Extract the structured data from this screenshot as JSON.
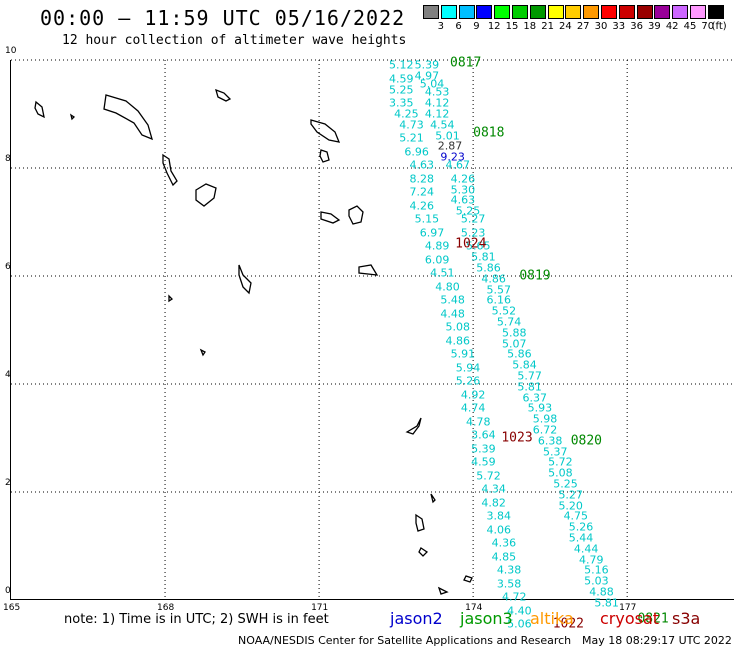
{
  "header": {
    "title": "00:00 – 11:59 UTC 05/16/2022",
    "subtitle": "12 hour collection of altimeter wave heights"
  },
  "colorbar": {
    "unit": "(ft)",
    "labels": [
      "3",
      "6",
      "9",
      "12",
      "15",
      "18",
      "21",
      "24",
      "27",
      "30",
      "33",
      "36",
      "39",
      "42",
      "45",
      "70"
    ],
    "colors": [
      "#808080",
      "#00ffff",
      "#00bfff",
      "#0000ff",
      "#00ff00",
      "#00cc00",
      "#009900",
      "#ffff00",
      "#ffcc00",
      "#ff9900",
      "#ff0000",
      "#cc0000",
      "#990000",
      "#990099",
      "#cc66ff",
      "#ff99ff",
      "#000000"
    ]
  },
  "map": {
    "lat_labels": [
      "10",
      "8",
      "6",
      "4",
      "2",
      "0"
    ],
    "lon_labels": [
      "165",
      "168",
      "171",
      "174",
      "177"
    ],
    "lat_range": [
      0,
      10
    ],
    "lon_range": [
      165,
      179.1
    ],
    "grid": "dotted"
  },
  "tracks": [
    {
      "color": "#00c8c8",
      "obs": [
        {
          "lon": 172.6,
          "lat": 9.9,
          "v": "5.12"
        },
        {
          "lon": 173.1,
          "lat": 9.9,
          "v": "5.39"
        },
        {
          "lon": 173.1,
          "lat": 9.7,
          "v": "4.97"
        },
        {
          "lon": 172.6,
          "lat": 9.65,
          "v": "4.59"
        },
        {
          "lon": 173.2,
          "lat": 9.55,
          "v": "5.04"
        },
        {
          "lon": 172.6,
          "lat": 9.45,
          "v": "5.25"
        },
        {
          "lon": 173.3,
          "lat": 9.4,
          "v": "4.53"
        },
        {
          "lon": 172.6,
          "lat": 9.2,
          "v": "3.35"
        },
        {
          "lon": 173.3,
          "lat": 9.2,
          "v": "4.12"
        },
        {
          "lon": 172.7,
          "lat": 9.0,
          "v": "4.25"
        },
        {
          "lon": 173.3,
          "lat": 9.0,
          "v": "4.12"
        },
        {
          "lon": 172.8,
          "lat": 8.8,
          "v": "4.73"
        },
        {
          "lon": 173.4,
          "lat": 8.8,
          "v": "4.54"
        },
        {
          "lon": 173.5,
          "lat": 8.6,
          "v": "5.01"
        },
        {
          "lon": 172.8,
          "lat": 8.55,
          "v": "5.21"
        },
        {
          "lon": 172.9,
          "lat": 8.3,
          "v": "6.96"
        },
        {
          "lon": 173.0,
          "lat": 8.05,
          "v": "4.63"
        },
        {
          "lon": 173.7,
          "lat": 8.05,
          "v": "4.67"
        },
        {
          "lon": 173.0,
          "lat": 7.8,
          "v": "8.28"
        },
        {
          "lon": 173.8,
          "lat": 7.8,
          "v": "4.26"
        },
        {
          "lon": 173.0,
          "lat": 7.55,
          "v": "7.24"
        },
        {
          "lon": 173.8,
          "lat": 7.6,
          "v": "5.30"
        },
        {
          "lon": 173.8,
          "lat": 7.4,
          "v": "4.63"
        },
        {
          "lon": 173.0,
          "lat": 7.3,
          "v": "4.26"
        },
        {
          "lon": 173.9,
          "lat": 7.2,
          "v": "5.25"
        },
        {
          "lon": 173.1,
          "lat": 7.05,
          "v": "5.15"
        },
        {
          "lon": 174.0,
          "lat": 7.05,
          "v": "5.27"
        },
        {
          "lon": 173.2,
          "lat": 6.8,
          "v": "6.97"
        },
        {
          "lon": 174.0,
          "lat": 6.8,
          "v": "5.23"
        },
        {
          "lon": 173.3,
          "lat": 6.55,
          "v": "4.89"
        },
        {
          "lon": 174.1,
          "lat": 6.55,
          "v": "5.65"
        },
        {
          "lon": 174.2,
          "lat": 6.35,
          "v": "5.81"
        },
        {
          "lon": 173.3,
          "lat": 6.3,
          "v": "6.09"
        },
        {
          "lon": 174.3,
          "lat": 6.15,
          "v": "5.86"
        },
        {
          "lon": 173.4,
          "lat": 6.05,
          "v": "4.51"
        },
        {
          "lon": 174.4,
          "lat": 5.95,
          "v": "4.86"
        },
        {
          "lon": 173.5,
          "lat": 5.8,
          "v": "4.80"
        },
        {
          "lon": 174.5,
          "lat": 5.75,
          "v": "5.57"
        },
        {
          "lon": 173.6,
          "lat": 5.55,
          "v": "5.48"
        },
        {
          "lon": 174.5,
          "lat": 5.55,
          "v": "6.16"
        },
        {
          "lon": 173.6,
          "lat": 5.3,
          "v": "4.48"
        },
        {
          "lon": 174.6,
          "lat": 5.35,
          "v": "5.52"
        },
        {
          "lon": 174.7,
          "lat": 5.15,
          "v": "5.74"
        },
        {
          "lon": 173.7,
          "lat": 5.05,
          "v": "5.08"
        },
        {
          "lon": 174.8,
          "lat": 4.95,
          "v": "5.88"
        },
        {
          "lon": 173.7,
          "lat": 4.8,
          "v": "4.86"
        },
        {
          "lon": 174.8,
          "lat": 4.75,
          "v": "5.07"
        },
        {
          "lon": 173.8,
          "lat": 4.55,
          "v": "5.91"
        },
        {
          "lon": 174.9,
          "lat": 4.55,
          "v": "5.86"
        },
        {
          "lon": 175.0,
          "lat": 4.35,
          "v": "5.84"
        },
        {
          "lon": 173.9,
          "lat": 4.3,
          "v": "5.94"
        },
        {
          "lon": 175.1,
          "lat": 4.15,
          "v": "5.77"
        },
        {
          "lon": 173.9,
          "lat": 4.05,
          "v": "5.26"
        },
        {
          "lon": 175.1,
          "lat": 3.95,
          "v": "5.81"
        },
        {
          "lon": 174.0,
          "lat": 3.8,
          "v": "4.92"
        },
        {
          "lon": 175.2,
          "lat": 3.75,
          "v": "6.37"
        },
        {
          "lon": 174.0,
          "lat": 3.55,
          "v": "4.74"
        },
        {
          "lon": 175.3,
          "lat": 3.55,
          "v": "5.93"
        },
        {
          "lon": 174.1,
          "lat": 3.3,
          "v": "4.78"
        },
        {
          "lon": 175.4,
          "lat": 3.35,
          "v": "5.98"
        },
        {
          "lon": 175.4,
          "lat": 3.15,
          "v": "6.72"
        },
        {
          "lon": 174.2,
          "lat": 3.05,
          "v": "3.64"
        },
        {
          "lon": 175.5,
          "lat": 2.95,
          "v": "6.38"
        },
        {
          "lon": 174.2,
          "lat": 2.8,
          "v": "5.39"
        },
        {
          "lon": 175.6,
          "lat": 2.75,
          "v": "5.37"
        },
        {
          "lon": 174.2,
          "lat": 2.55,
          "v": "4.59"
        },
        {
          "lon": 175.7,
          "lat": 2.55,
          "v": "5.72"
        },
        {
          "lon": 175.7,
          "lat": 2.35,
          "v": "5.08"
        },
        {
          "lon": 174.3,
          "lat": 2.3,
          "v": "5.72"
        },
        {
          "lon": 175.8,
          "lat": 2.15,
          "v": "5.25"
        },
        {
          "lon": 174.4,
          "lat": 2.05,
          "v": "4.34"
        },
        {
          "lon": 175.9,
          "lat": 1.95,
          "v": "5.27"
        },
        {
          "lon": 174.4,
          "lat": 1.8,
          "v": "4.82"
        },
        {
          "lon": 175.9,
          "lat": 1.75,
          "v": "5.20"
        },
        {
          "lon": 174.5,
          "lat": 1.55,
          "v": "3.84"
        },
        {
          "lon": 176.0,
          "lat": 1.55,
          "v": "4.75"
        },
        {
          "lon": 176.1,
          "lat": 1.35,
          "v": "5.26"
        },
        {
          "lon": 174.5,
          "lat": 1.3,
          "v": "4.06"
        },
        {
          "lon": 176.1,
          "lat": 1.15,
          "v": "5.44"
        },
        {
          "lon": 174.6,
          "lat": 1.05,
          "v": "4.36"
        },
        {
          "lon": 176.2,
          "lat": 0.95,
          "v": "4.44"
        },
        {
          "lon": 174.6,
          "lat": 0.8,
          "v": "4.85"
        },
        {
          "lon": 176.3,
          "lat": 0.75,
          "v": "4.79"
        },
        {
          "lon": 174.7,
          "lat": 0.55,
          "v": "4.38"
        },
        {
          "lon": 176.4,
          "lat": 0.55,
          "v": "5.16"
        },
        {
          "lon": 176.4,
          "lat": 0.35,
          "v": "5.03"
        },
        {
          "lon": 174.7,
          "lat": 0.3,
          "v": "3.58"
        },
        {
          "lon": 176.5,
          "lat": 0.15,
          "v": "4.88"
        },
        {
          "lon": 174.8,
          "lat": 0.05,
          "v": "4.72"
        },
        {
          "lon": 174.9,
          "lat": -0.2,
          "v": "4.40"
        },
        {
          "lon": 176.6,
          "lat": -0.05,
          "v": "5.81"
        },
        {
          "lon": 174.9,
          "lat": -0.45,
          "v": "5.06"
        }
      ]
    },
    {
      "color": "#333333",
      "obs": [
        {
          "lon": 173.55,
          "lat": 8.4,
          "v": "2.87"
        }
      ]
    },
    {
      "color": "#0000cc",
      "obs": [
        {
          "lon": 173.6,
          "lat": 8.2,
          "v": "9.23"
        }
      ]
    }
  ],
  "time_marks": [
    {
      "lon": 173.55,
      "lat": 9.95,
      "v": "0817",
      "color": "#008800"
    },
    {
      "lon": 174.0,
      "lat": 8.65,
      "v": "0818",
      "color": "#008800"
    },
    {
      "lon": 173.65,
      "lat": 6.6,
      "v": "1024",
      "color": "#880000"
    },
    {
      "lon": 174.9,
      "lat": 6.0,
      "v": "0819",
      "color": "#008800"
    },
    {
      "lon": 174.55,
      "lat": 3.0,
      "v": "1023",
      "color": "#880000"
    },
    {
      "lon": 175.9,
      "lat": 2.95,
      "v": "0820",
      "color": "#008800"
    },
    {
      "lon": 175.55,
      "lat": -0.45,
      "v": "1022",
      "color": "#880000"
    },
    {
      "lon": 177.2,
      "lat": -0.35,
      "v": "0821",
      "color": "#008800"
    }
  ],
  "footer": {
    "note": "note: 1) Time is in UTC; 2) SWH is in feet",
    "credit": "NOAA/NESDIS Center for Satellite Applications and Research",
    "timestamp": "May 18 08:29:17 UTC 2022"
  },
  "legend": [
    {
      "label": "jason2",
      "color": "#0000cc"
    },
    {
      "label": "jason3",
      "color": "#009900"
    },
    {
      "label": "altika",
      "color": "#ff9900"
    },
    {
      "label": "cryosat",
      "color": "#cc0000"
    },
    {
      "label": "s3a",
      "color": "#880000"
    }
  ]
}
